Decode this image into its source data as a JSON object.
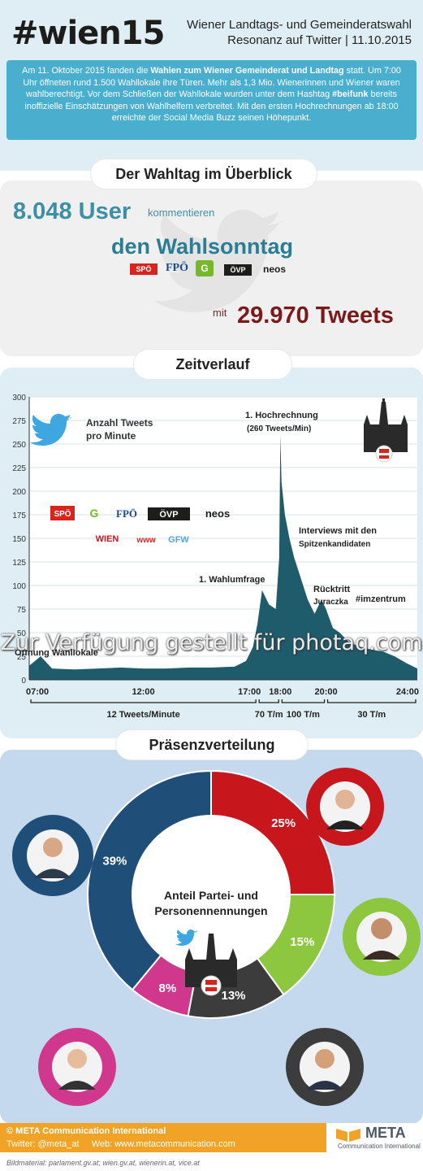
{
  "header": {
    "hashtag": "#wien15",
    "subtitle_line1": "Wiener Landtags- und Gemeinderatswahl",
    "subtitle_line2": "Resonanz auf Twitter | 11.10.2015",
    "intro_parts": [
      "Am 11. Oktober 2015 fanden die ",
      "Wahlen zum Wiener Gemeinderat und Landtag",
      " statt. Um 7:00 Uhr öffneten rund 1.500 Wahllokale ihre Türen. Mehr als 1,3 Mio. Wienerinnen und Wiener waren wahlberechtigt. Vor dem Schließen der Wahllokale wurden unter dem Hashtag ",
      "#beifunk",
      " bereits inoffizielle Einschätzungen von Wahlhelfern verbreitet. Mit den ersten Hochrechnungen ab 18:00 erreichte der Social Media Buzz seinen Höhepunkt."
    ]
  },
  "overview": {
    "section_title": "Der Wahltag im Überblick",
    "users_number": "8.048 User",
    "users_text": "kommentieren",
    "users_line2": "den Wahlsonntag",
    "tweets_prefix": "mit",
    "tweets_number": "29.970 Tweets",
    "parties": [
      "SPÖ",
      "FPÖ",
      "G",
      "ÖVP",
      "neos"
    ]
  },
  "timeline": {
    "section_title": "Zeitverlauf",
    "legend_title_line1": "Anzahl Tweets",
    "legend_title_line2": "pro Minute",
    "party_logos_row1": [
      "SPÖ",
      "G",
      "FPÖ",
      "ÖVP",
      "neos"
    ],
    "party_logos_row2": [
      "WIEN",
      "www",
      "GFW"
    ]
  },
  "chart_data": [
    {
      "type": "area",
      "title": "Anzahl Tweets pro Minute",
      "x_range": [
        "07:00",
        "24:00"
      ],
      "ylim": [
        0,
        300
      ],
      "y_ticks": [
        0,
        25,
        50,
        75,
        100,
        125,
        150,
        175,
        200,
        225,
        250,
        275,
        300
      ],
      "x_ticks": [
        "07:00",
        "12:00",
        "17:00",
        "18:00",
        "20:00",
        "24:00"
      ],
      "grid": true,
      "series": [
        {
          "x_hours": [
            7,
            7.5,
            8,
            9,
            10,
            11,
            12,
            13,
            14,
            15,
            16,
            16.5,
            16.8,
            17,
            17.2,
            17.5,
            17.8,
            17.95,
            18,
            18.05,
            18.2,
            18.4,
            18.6,
            18.8,
            19,
            19.2,
            19.5,
            19.8,
            20,
            20.3,
            20.6,
            21,
            21.5,
            22,
            22.5,
            23,
            23.5,
            24
          ],
          "values": [
            15,
            25,
            12,
            11,
            12,
            13,
            12,
            12,
            13,
            13,
            14,
            20,
            35,
            60,
            95,
            80,
            75,
            130,
            260,
            210,
            175,
            150,
            130,
            115,
            100,
            85,
            70,
            85,
            75,
            55,
            50,
            40,
            35,
            32,
            30,
            25,
            18,
            12
          ]
        }
      ],
      "annotations": [
        {
          "text": "Öffnung Wahllokale",
          "x": 7.3
        },
        {
          "text": "1. Wahlumfrage",
          "x": 17.2
        },
        {
          "text": "1. Hochrechnung",
          "sub": "(260 Tweets/Min)",
          "x": 18
        },
        {
          "text": "Interviews mit den",
          "sub": "Spitzenkandidaten",
          "x": 18.6
        },
        {
          "text": "Rücktritt",
          "sub": "Juraczka",
          "x": 19.5
        },
        {
          "text": "#imzentrum",
          "x": 21.5
        }
      ],
      "rate_labels": [
        "12 Tweets/Minute",
        "70 T/m",
        "100 T/m",
        "30 T/m"
      ]
    },
    {
      "type": "pie",
      "title": "Anteil Partei- und Personennennungen",
      "categories": [
        "rot",
        "grün",
        "schwarz",
        "pink",
        "blau"
      ],
      "values": [
        25,
        15,
        13,
        8,
        39
      ],
      "labels": [
        "25%",
        "15%",
        "13%",
        "8%",
        "39%"
      ],
      "colors": [
        "#c8161d",
        "#8dc63f",
        "#3c3c3c",
        "#d0388e",
        "#1f4e79"
      ]
    }
  ],
  "pie_section": {
    "section_title": "Präsenzverteilung",
    "center_line1": "Anteil Partei- und",
    "center_line2": "Personennennungen"
  },
  "footer": {
    "copyright": "© META Communication International",
    "social": "Twitter: @meta_at     Web: www.metacommunication.com",
    "brand": "META",
    "brand_sub": "Communication International",
    "credits": "Bildmaterial: parlament.gv.at; wien.gv.at, wienerin.at, vice.at"
  },
  "watermark": "Zur Verfügung gestellt für photaq.com"
}
